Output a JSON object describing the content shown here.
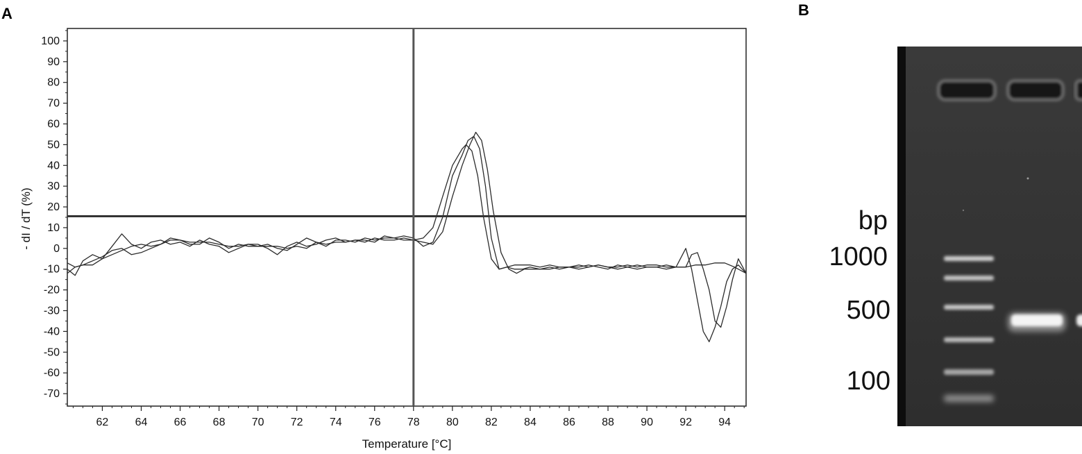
{
  "panels": {
    "a_label": "A",
    "b_label": "B"
  },
  "chart_data": {
    "type": "line",
    "xlabel": "Temperature [°C]",
    "ylabel": "- dI / dT (%)",
    "xlim": [
      60.2,
      95.1
    ],
    "ylim": [
      -76,
      106
    ],
    "x_ticks": [
      62,
      64,
      66,
      68,
      70,
      72,
      74,
      76,
      78,
      80,
      82,
      84,
      86,
      88,
      90,
      92,
      94
    ],
    "y_ticks": [
      100,
      90,
      80,
      70,
      60,
      50,
      40,
      30,
      20,
      10,
      0,
      -10,
      -20,
      -30,
      -40,
      -50,
      -60,
      -70
    ],
    "threshold_y": 15.5,
    "cursor_x": 78,
    "series_color": "#2b2b2b",
    "series": [
      {
        "x": [
          60.2,
          60.6,
          61.0,
          61.5,
          62.0,
          62.5,
          63.0,
          63.5,
          64.0,
          64.5,
          65.0,
          65.5,
          66.0,
          66.5,
          67.0,
          67.5,
          68.0,
          68.5,
          69.0,
          69.5,
          70.0,
          70.5,
          71.0,
          71.5,
          72.0,
          72.5,
          73.0,
          73.5,
          74.0,
          74.5,
          75.0,
          75.5,
          76.0,
          76.5,
          77.0,
          77.5,
          78.0,
          78.5,
          79.0,
          79.5,
          80.0,
          80.5,
          80.7,
          81.0,
          81.3,
          81.6,
          82.0,
          82.4,
          82.8,
          83.2,
          83.6,
          84.0,
          84.5,
          85.0,
          85.5,
          86.0,
          86.5,
          87.0,
          87.5,
          88.0,
          88.5,
          89.0,
          89.5,
          90.0,
          90.5,
          91.0,
          91.5,
          92.0,
          92.3,
          92.6,
          92.9,
          93.2,
          93.5,
          93.8,
          94.1,
          94.4,
          94.7,
          95.1
        ],
        "y": [
          -10,
          -13,
          -6,
          -3,
          -5,
          1,
          7,
          2,
          0,
          3,
          4,
          2,
          3,
          1,
          4,
          2,
          1,
          -2,
          0,
          2,
          2,
          0,
          -3,
          1,
          3,
          1,
          2,
          4,
          5,
          3,
          4,
          4,
          3,
          6,
          5,
          4,
          4,
          5,
          10,
          25,
          40,
          48,
          50,
          47,
          35,
          15,
          -5,
          -10,
          -9,
          -8,
          -8,
          -8,
          -9,
          -8,
          -9,
          -9,
          -8,
          -9,
          -8,
          -9,
          -9,
          -8,
          -9,
          -8,
          -8,
          -9,
          -9,
          0,
          -10,
          -25,
          -40,
          -45,
          -38,
          -28,
          -16,
          -10,
          -8,
          -12
        ]
      },
      {
        "x": [
          60.2,
          60.6,
          61.0,
          61.5,
          62.0,
          62.5,
          63.0,
          63.5,
          64.0,
          64.5,
          65.0,
          65.5,
          66.0,
          66.5,
          67.0,
          67.5,
          68.0,
          68.5,
          69.0,
          69.5,
          70.0,
          70.5,
          71.0,
          71.5,
          72.0,
          72.5,
          73.0,
          73.5,
          74.0,
          74.5,
          75.0,
          75.5,
          76.0,
          76.5,
          77.0,
          77.5,
          78.0,
          78.5,
          79.0,
          79.5,
          80.0,
          80.5,
          80.8,
          81.1,
          81.4,
          81.7,
          82.0,
          82.4,
          82.8,
          83.2,
          83.6,
          84.0,
          84.5,
          85.0,
          85.5,
          86.0,
          86.5,
          87.0,
          87.5,
          88.0,
          88.5,
          89.0,
          89.5,
          90.0,
          90.5,
          91.0,
          91.5,
          92.0,
          92.3,
          92.6,
          92.9,
          93.2,
          93.5,
          93.8,
          94.1,
          94.4,
          94.7,
          95.1
        ],
        "y": [
          -7,
          -9,
          -8,
          -6,
          -4,
          -1,
          0,
          -3,
          -2,
          0,
          2,
          5,
          4,
          2,
          2,
          5,
          3,
          0,
          2,
          1,
          1,
          2,
          0,
          -1,
          2,
          5,
          3,
          1,
          4,
          4,
          3,
          5,
          4,
          5,
          5,
          6,
          5,
          1,
          3,
          15,
          35,
          45,
          52,
          54,
          48,
          30,
          5,
          -10,
          -9,
          -10,
          -10,
          -9,
          -10,
          -9,
          -10,
          -9,
          -9,
          -8,
          -9,
          -10,
          -8,
          -9,
          -8,
          -9,
          -9,
          -8,
          -9,
          -9,
          -3,
          -2,
          -10,
          -20,
          -35,
          -38,
          -28,
          -15,
          -5,
          -12
        ]
      },
      {
        "x": [
          60.2,
          60.6,
          61.0,
          61.5,
          62.0,
          62.5,
          63.0,
          63.5,
          64.0,
          64.5,
          65.0,
          65.5,
          66.0,
          66.5,
          67.0,
          67.5,
          68.0,
          68.5,
          69.0,
          69.5,
          70.0,
          70.5,
          71.0,
          71.5,
          72.0,
          72.5,
          73.0,
          73.5,
          74.0,
          74.5,
          75.0,
          75.5,
          76.0,
          76.5,
          77.0,
          77.5,
          78.0,
          78.5,
          79.0,
          79.5,
          80.0,
          80.5,
          80.9,
          81.2,
          81.5,
          81.8,
          82.1,
          82.5,
          82.9,
          83.3,
          83.7,
          84.0,
          84.5,
          85.0,
          85.5,
          86.0,
          86.5,
          87.0,
          87.5,
          88.0,
          88.5,
          89.0,
          89.5,
          90.0,
          90.5,
          91.0,
          91.5,
          92.0,
          92.5,
          93.0,
          93.5,
          94.0,
          94.5,
          95.1
        ],
        "y": [
          -12,
          -9,
          -8,
          -8,
          -5,
          -3,
          -1,
          1,
          2,
          1,
          2,
          4,
          4,
          3,
          3,
          3,
          2,
          1,
          1,
          2,
          1,
          1,
          1,
          0,
          1,
          0,
          3,
          2,
          3,
          3,
          4,
          3,
          5,
          4,
          4,
          5,
          4,
          3,
          2,
          8,
          25,
          40,
          50,
          56,
          52,
          38,
          18,
          -2,
          -10,
          -12,
          -10,
          -10,
          -10,
          -10,
          -9,
          -9,
          -10,
          -9,
          -8,
          -9,
          -10,
          -9,
          -10,
          -9,
          -9,
          -10,
          -9,
          -9,
          -8,
          -8,
          -7,
          -7,
          -9,
          -12
        ]
      }
    ]
  },
  "gel": {
    "marker_labels": [
      "bp",
      "1000",
      "500",
      "100"
    ]
  }
}
